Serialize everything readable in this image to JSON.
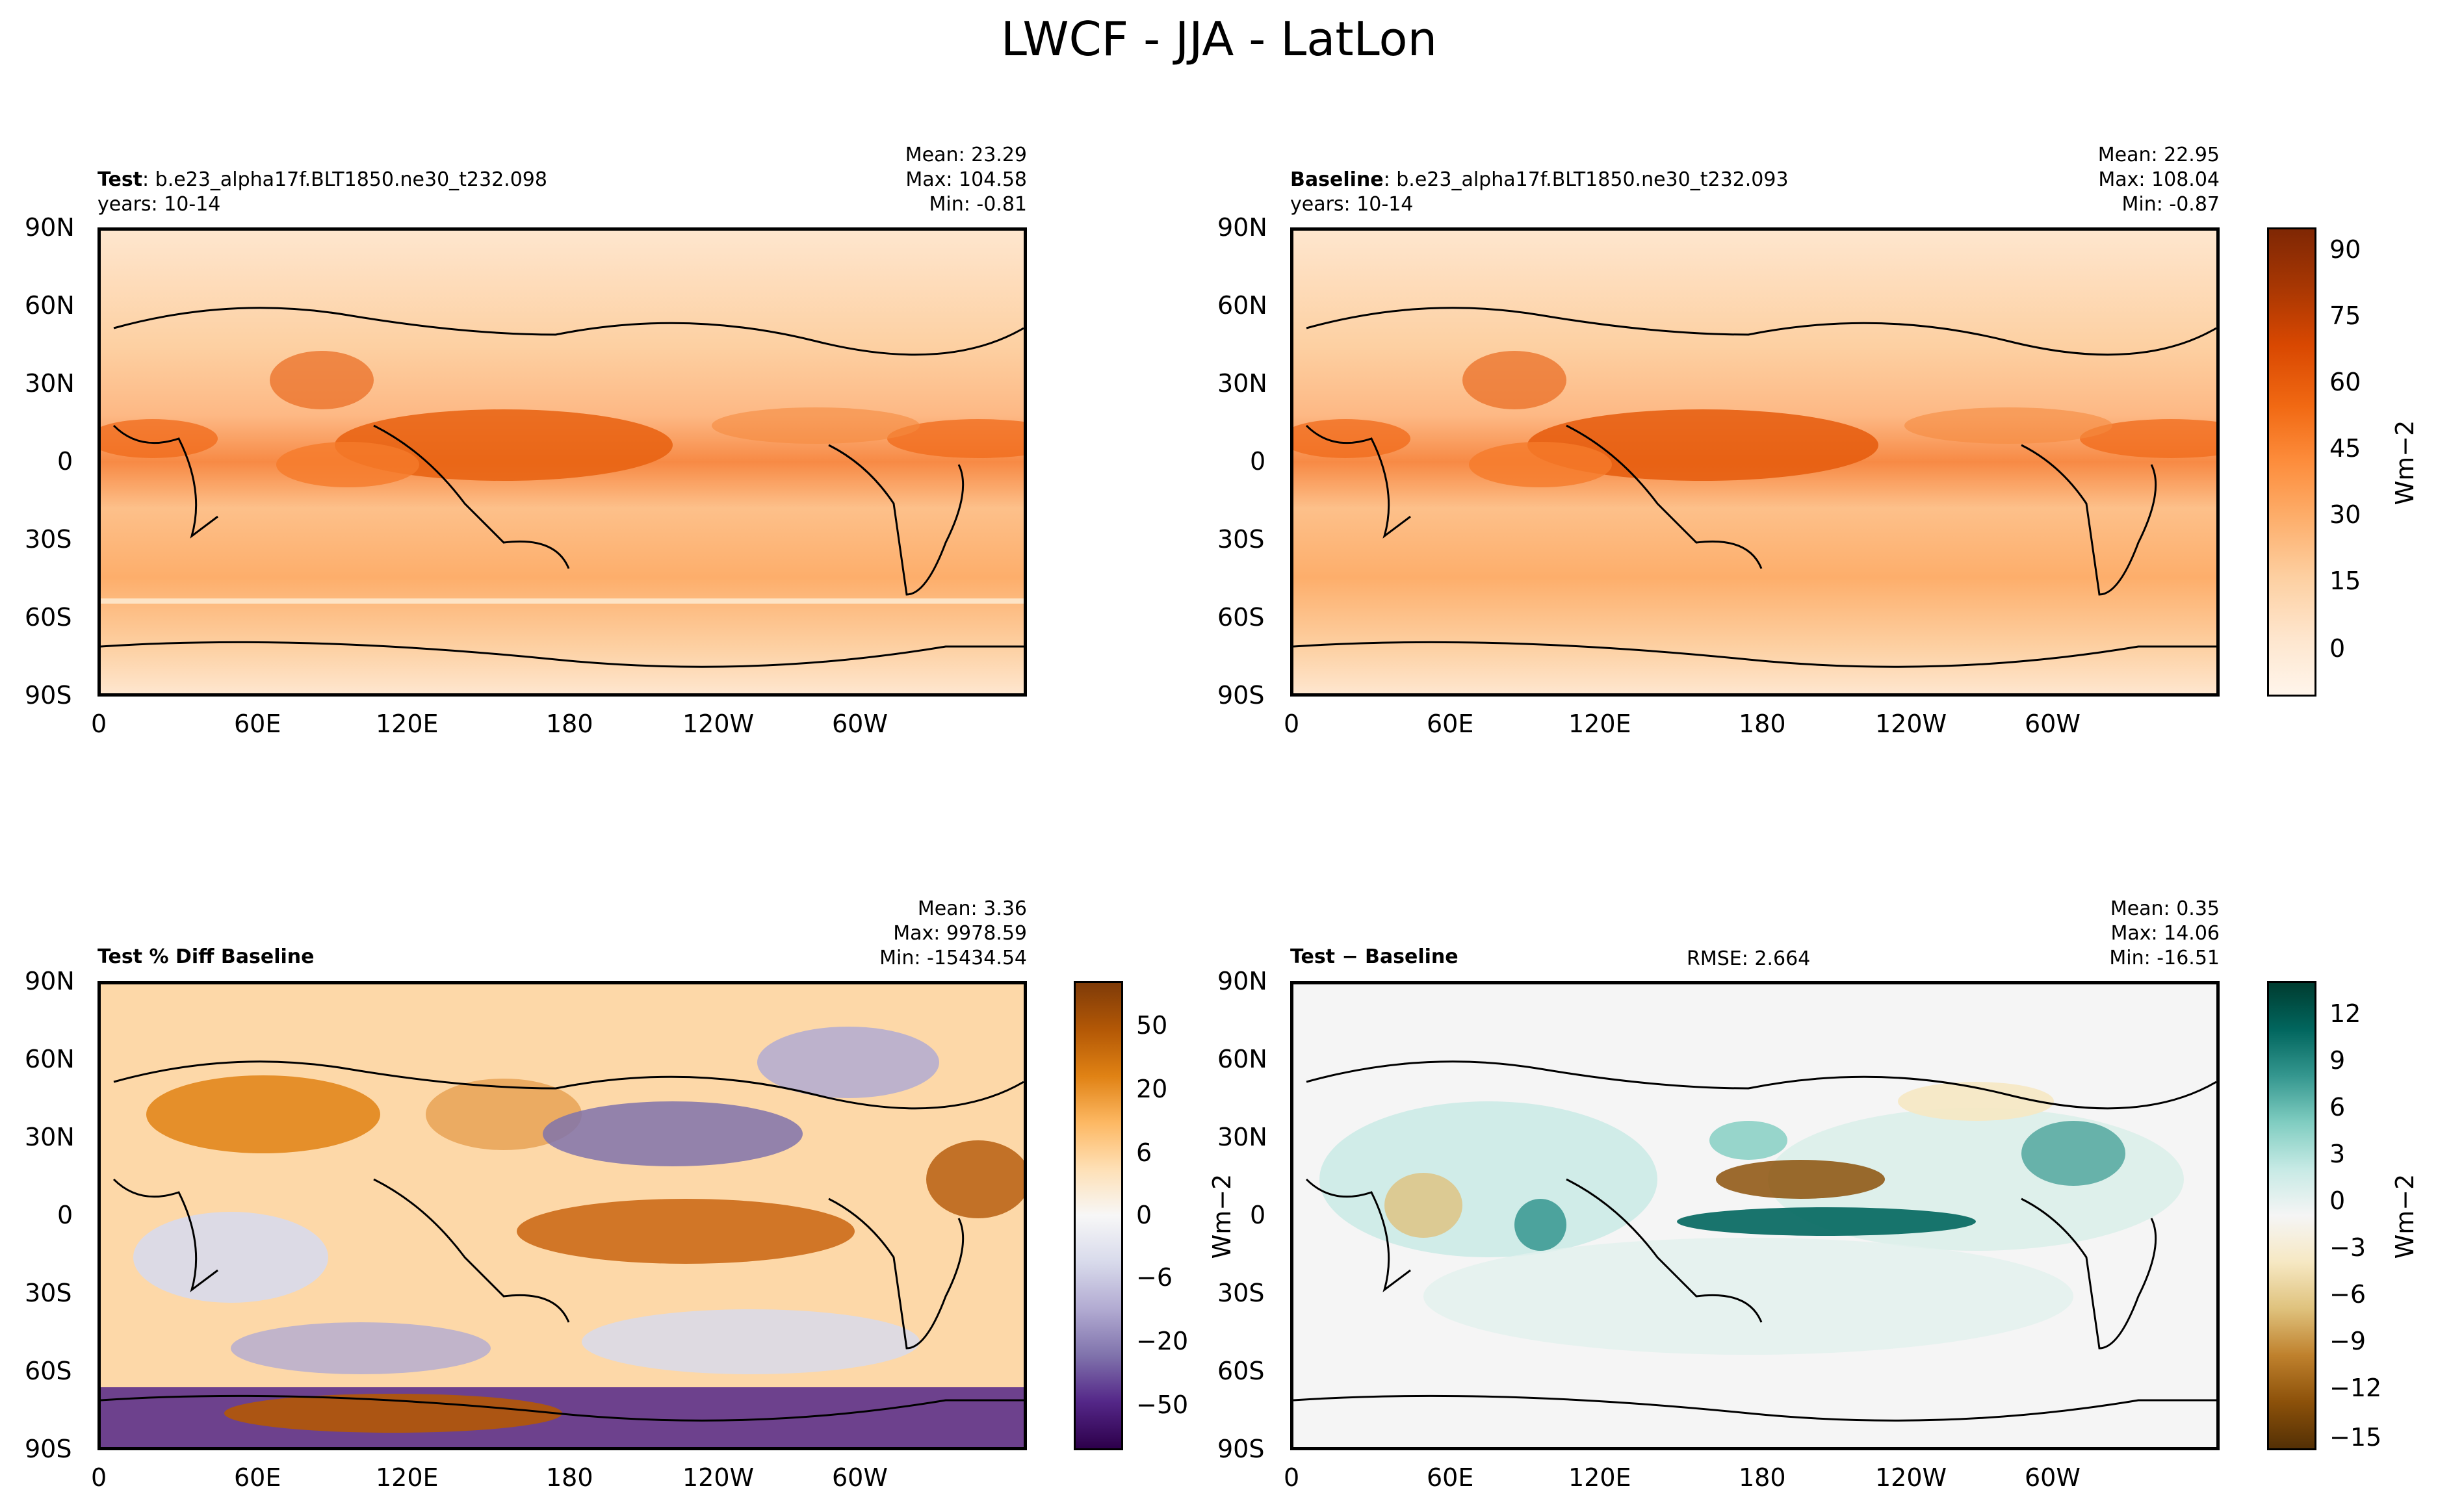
{
  "figure": {
    "title": "LWCF - JJA - LatLon"
  },
  "colors": {
    "seq_oranges": [
      "#fff5eb",
      "#fee6ce",
      "#fdd0a2",
      "#fdae6b",
      "#fd8d3c",
      "#f16913",
      "#d94801",
      "#a63603",
      "#7f2704"
    ],
    "puor": [
      "#2d004b",
      "#542788",
      "#8073ac",
      "#b2abd2",
      "#d8daeb",
      "#f7f7f7",
      "#fee0b6",
      "#fdb863",
      "#e08214",
      "#b35806",
      "#7f3b08"
    ],
    "brbg": [
      "#543005",
      "#8c510a",
      "#bf812d",
      "#dfc27d",
      "#f6e8c3",
      "#f5f5f5",
      "#c7eae5",
      "#80cdc1",
      "#35978f",
      "#01665e",
      "#003c30"
    ]
  },
  "chart_data": [
    {
      "type": "heatmap",
      "name": "test",
      "title_bold": "Test",
      "title_rest": ": b.e23_alpha17f.BLT1850.ne30_t232.098",
      "subtitle": "years: 10-14",
      "stats": {
        "mean": "Mean: 23.29",
        "max": "Max: 104.58",
        "min": "Min: -0.81"
      },
      "x_ticks": [
        "0",
        "60E",
        "120E",
        "180",
        "120W",
        "60W"
      ],
      "y_ticks": [
        "90N",
        "60N",
        "30N",
        "0",
        "30S",
        "60S",
        "90S"
      ],
      "xlim": [
        0,
        360
      ],
      "ylim": [
        -90,
        90
      ],
      "colormap": "seq_oranges"
    },
    {
      "type": "heatmap",
      "name": "baseline",
      "title_bold": "Baseline",
      "title_rest": ": b.e23_alpha17f.BLT1850.ne30_t232.093",
      "subtitle": "years: 10-14",
      "stats": {
        "mean": "Mean: 22.95",
        "max": "Max: 108.04",
        "min": "Min: -0.87"
      },
      "x_ticks": [
        "0",
        "60E",
        "120E",
        "180",
        "120W",
        "60W"
      ],
      "y_ticks": [
        "90N",
        "60N",
        "30N",
        "0",
        "30S",
        "60S",
        "90S"
      ],
      "xlim": [
        0,
        360
      ],
      "ylim": [
        -90,
        90
      ],
      "colormap": "seq_oranges",
      "colorbar": {
        "ticks": [
          "90",
          "75",
          "60",
          "45",
          "30",
          "15",
          "0"
        ],
        "label": "Wm−2"
      }
    },
    {
      "type": "heatmap",
      "name": "pct-diff",
      "title_bold": "Test % Diff Baseline",
      "stats": {
        "mean": "Mean:  3.36",
        "max": "Max: 9978.59",
        "min": "Min: -15434.54"
      },
      "x_ticks": [
        "0",
        "60E",
        "120E",
        "180",
        "120W",
        "60W"
      ],
      "y_ticks": [
        "90N",
        "60N",
        "30N",
        "0",
        "30S",
        "60S",
        "90S"
      ],
      "xlim": [
        0,
        360
      ],
      "ylim": [
        -90,
        90
      ],
      "colormap": "puor",
      "colorbar": {
        "ticks": [
          "50",
          "20",
          "6",
          "0",
          "−6",
          "−20",
          "−50"
        ],
        "label": "Wm−2"
      }
    },
    {
      "type": "heatmap",
      "name": "diff",
      "title_bold": "Test − Baseline",
      "rmse": "RMSE: 2.664",
      "stats": {
        "mean": "Mean:  0.35",
        "max": "Max: 14.06",
        "min": "Min: -16.51"
      },
      "x_ticks": [
        "0",
        "60E",
        "120E",
        "180",
        "120W",
        "60W"
      ],
      "y_ticks": [
        "90N",
        "60N",
        "30N",
        "0",
        "30S",
        "60S",
        "90S"
      ],
      "xlim": [
        0,
        360
      ],
      "ylim": [
        -90,
        90
      ],
      "colormap": "brbg",
      "colorbar": {
        "ticks": [
          "12",
          "9",
          "6",
          "3",
          "0",
          "−3",
          "−6",
          "−9",
          "−12",
          "−15"
        ],
        "label": "Wm−2"
      }
    }
  ]
}
